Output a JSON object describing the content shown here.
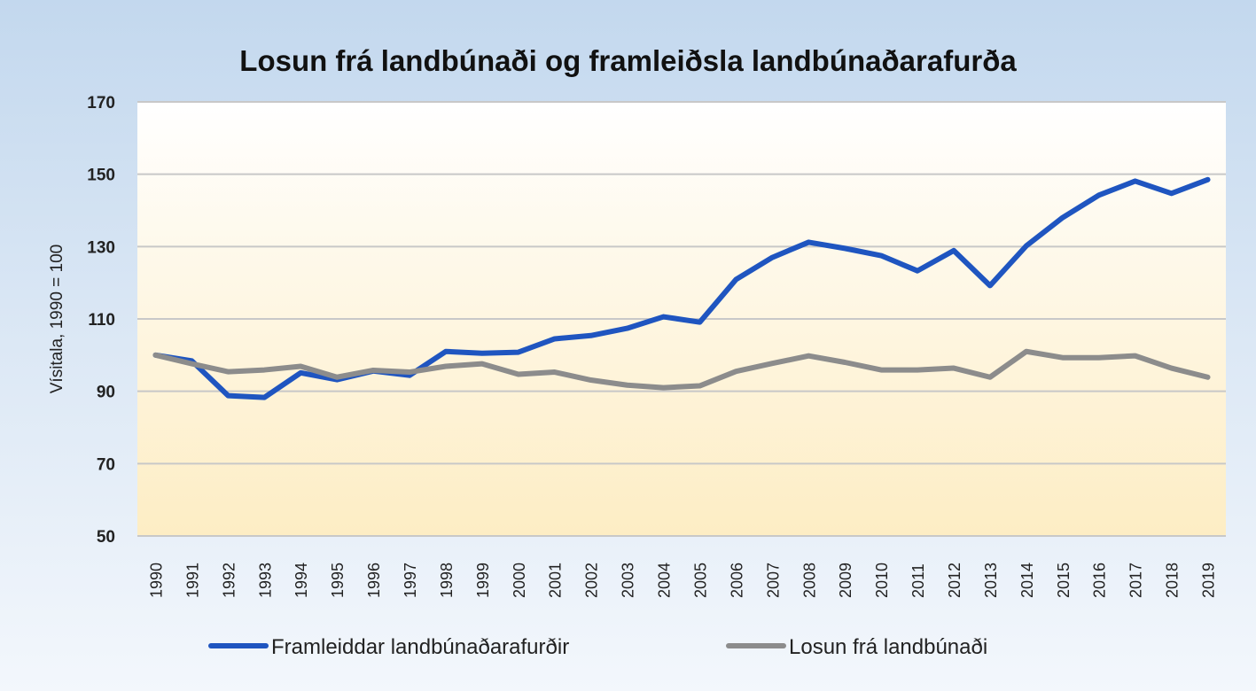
{
  "chart_data": {
    "type": "line",
    "title": "Losun frá landbúnaði og framleiðsla landbúnaðarafurða",
    "xlabel": "",
    "ylabel": "Vísitala, 1990 = 100",
    "ylim": [
      50,
      170
    ],
    "yticks": [
      50,
      70,
      90,
      110,
      130,
      150,
      170
    ],
    "grid": true,
    "legend": "bottom",
    "categories": [
      "1990",
      "1991",
      "1992",
      "1993",
      "1994",
      "1995",
      "1996",
      "1997",
      "1998",
      "1999",
      "2000",
      "2001",
      "2002",
      "2003",
      "2004",
      "2005",
      "2006",
      "2007",
      "2008",
      "2009",
      "2010",
      "2011",
      "2012",
      "2013",
      "2014",
      "2015",
      "2016",
      "2017",
      "2018",
      "2019"
    ],
    "series": [
      {
        "name": "Framleiddar landbúnaðarafurðir",
        "color": "#1f55c0",
        "values": [
          100,
          98.4,
          88.8,
          88.3,
          95.1,
          93.2,
          95.6,
          94.4,
          101,
          100.5,
          100.8,
          104.5,
          105.4,
          107.4,
          110.6,
          109.1,
          120.9,
          127,
          131.2,
          129.5,
          127.5,
          123.3,
          128.9,
          119.2,
          130.2,
          138,
          144.2,
          148.1,
          144.7,
          148.5
        ]
      },
      {
        "name": "Losun frá landbúnaði",
        "color": "#8c8c8c",
        "values": [
          100,
          97.6,
          95.4,
          95.9,
          96.9,
          93.9,
          95.8,
          95.3,
          96.9,
          97.6,
          94.7,
          95.3,
          93.1,
          91.7,
          91,
          91.5,
          95.5,
          97.7,
          99.8,
          98,
          95.9,
          95.9,
          96.4,
          93.9,
          101,
          99.3,
          99.3,
          99.8,
          96.4,
          93.9
        ]
      }
    ]
  }
}
